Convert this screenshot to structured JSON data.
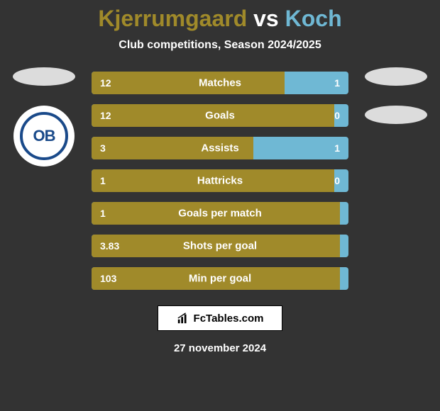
{
  "title": {
    "player1": "Kjerrumgaard",
    "vs": " vs ",
    "player2": "Koch",
    "player1_color": "#a08a2a",
    "player2_color": "#6fb8d4"
  },
  "subtitle": "Club competitions, Season 2024/2025",
  "left_badge_text": "OB",
  "bars": [
    {
      "label": "Matches",
      "left_val": "12",
      "right_val": "1",
      "left_pct": 75,
      "left_color": "#a08a2a",
      "right_color": "#6fb8d4"
    },
    {
      "label": "Goals",
      "left_val": "12",
      "right_val": "0",
      "left_pct": 100,
      "left_color": "#a08a2a",
      "right_color": "#6fb8d4"
    },
    {
      "label": "Assists",
      "left_val": "3",
      "right_val": "1",
      "left_pct": 63,
      "left_color": "#a08a2a",
      "right_color": "#6fb8d4"
    },
    {
      "label": "Hattricks",
      "left_val": "1",
      "right_val": "0",
      "left_pct": 100,
      "left_color": "#a08a2a",
      "right_color": "#6fb8d4"
    },
    {
      "label": "Goals per match",
      "left_val": "1",
      "right_val": "",
      "left_pct": 100,
      "left_color": "#a08a2a",
      "right_color": "#6fb8d4"
    },
    {
      "label": "Shots per goal",
      "left_val": "3.83",
      "right_val": "",
      "left_pct": 100,
      "left_color": "#a08a2a",
      "right_color": "#6fb8d4"
    },
    {
      "label": "Min per goal",
      "left_val": "103",
      "right_val": "",
      "left_pct": 100,
      "left_color": "#a08a2a",
      "right_color": "#6fb8d4"
    }
  ],
  "footer_brand": "FcTables.com",
  "date": "27 november 2024",
  "colors": {
    "background": "#333333",
    "ellipse": "#dcdcdc",
    "badge_border": "#1a4a8a",
    "text_white": "#ffffff"
  }
}
